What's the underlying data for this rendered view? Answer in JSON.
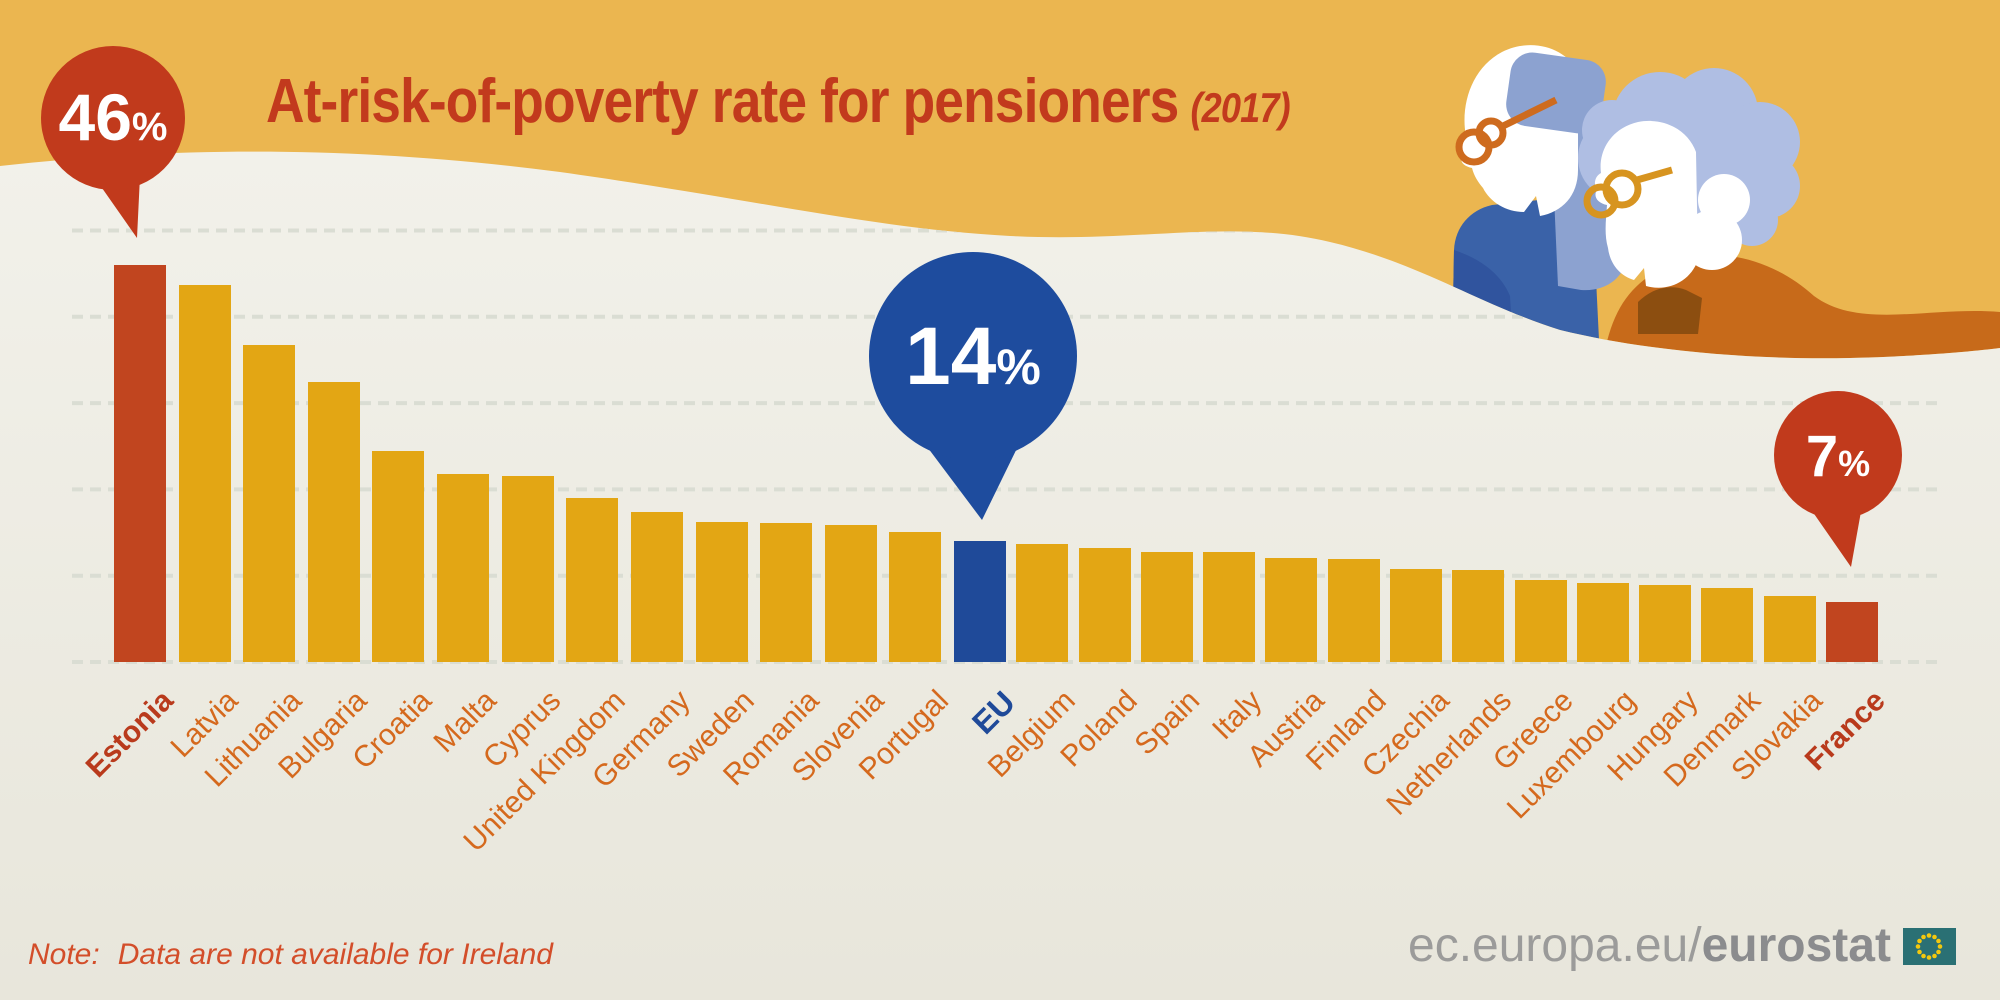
{
  "title": {
    "main": "At-risk-of-poverty rate for pensioners",
    "year": "(2017)"
  },
  "callouts": {
    "estonia": {
      "value": "46",
      "unit": "%"
    },
    "eu": {
      "value": "14",
      "unit": "%"
    },
    "france": {
      "value": "7",
      "unit": "%"
    }
  },
  "note": {
    "prefix": "Note:",
    "text": "Data are not available for Ireland"
  },
  "footer": {
    "url_regular": "ec.europa.eu/",
    "url_bold": "eurostat"
  },
  "chart_data": {
    "type": "bar",
    "title": "At-risk-of-poverty rate for pensioners (2017)",
    "unit": "%",
    "ylim": [
      0,
      50
    ],
    "gridline_step": 10,
    "grid": "dashed horizontal",
    "legend": "none",
    "categories": [
      "Estonia",
      "Latvia",
      "Lithuania",
      "Bulgaria",
      "Croatia",
      "Malta",
      "Cyprus",
      "United Kingdom",
      "Germany",
      "Sweden",
      "Romania",
      "Slovenia",
      "Portugal",
      "EU",
      "Belgium",
      "Poland",
      "Spain",
      "Italy",
      "Austria",
      "Finland",
      "Czechia",
      "Netherlands",
      "Greece",
      "Luxembourg",
      "Hungary",
      "Denmark",
      "Slovakia",
      "France"
    ],
    "values": [
      46,
      43.7,
      36.7,
      32.4,
      24.4,
      21.8,
      21.5,
      19,
      17.4,
      16.2,
      16.1,
      15.9,
      15.1,
      14,
      13.7,
      13.2,
      12.8,
      12.7,
      12.1,
      11.9,
      10.8,
      10.7,
      9.5,
      9.2,
      8.9,
      8.6,
      7.6,
      7
    ],
    "bar_colors": [
      "red",
      "yellow",
      "yellow",
      "yellow",
      "yellow",
      "yellow",
      "yellow",
      "yellow",
      "yellow",
      "yellow",
      "yellow",
      "yellow",
      "yellow",
      "blue",
      "yellow",
      "yellow",
      "yellow",
      "yellow",
      "yellow",
      "yellow",
      "yellow",
      "yellow",
      "yellow",
      "yellow",
      "yellow",
      "yellow",
      "yellow",
      "red"
    ],
    "annotations": [
      {
        "target": "Estonia",
        "label": "46%"
      },
      {
        "target": "EU",
        "label": "14%"
      },
      {
        "target": "France",
        "label": "7%"
      }
    ]
  },
  "colors": {
    "background": "#EBB650",
    "panel": "#F0EEE6",
    "yellow": "#E3A614",
    "red": "#C1451F",
    "blue": "#1F4A99",
    "grid": "#DADDD3",
    "title_red": "#C23A1D",
    "label_orange": "#D5691D",
    "label_red": "#B93A1C",
    "label_blue": "#1F4A99",
    "note_red": "#D34E2A",
    "logo_gray": "#9B9B9A",
    "logo_dark_gray": "#8B8C8E",
    "flag_teal": "#2A7074",
    "flag_star": "#F3C80E"
  }
}
